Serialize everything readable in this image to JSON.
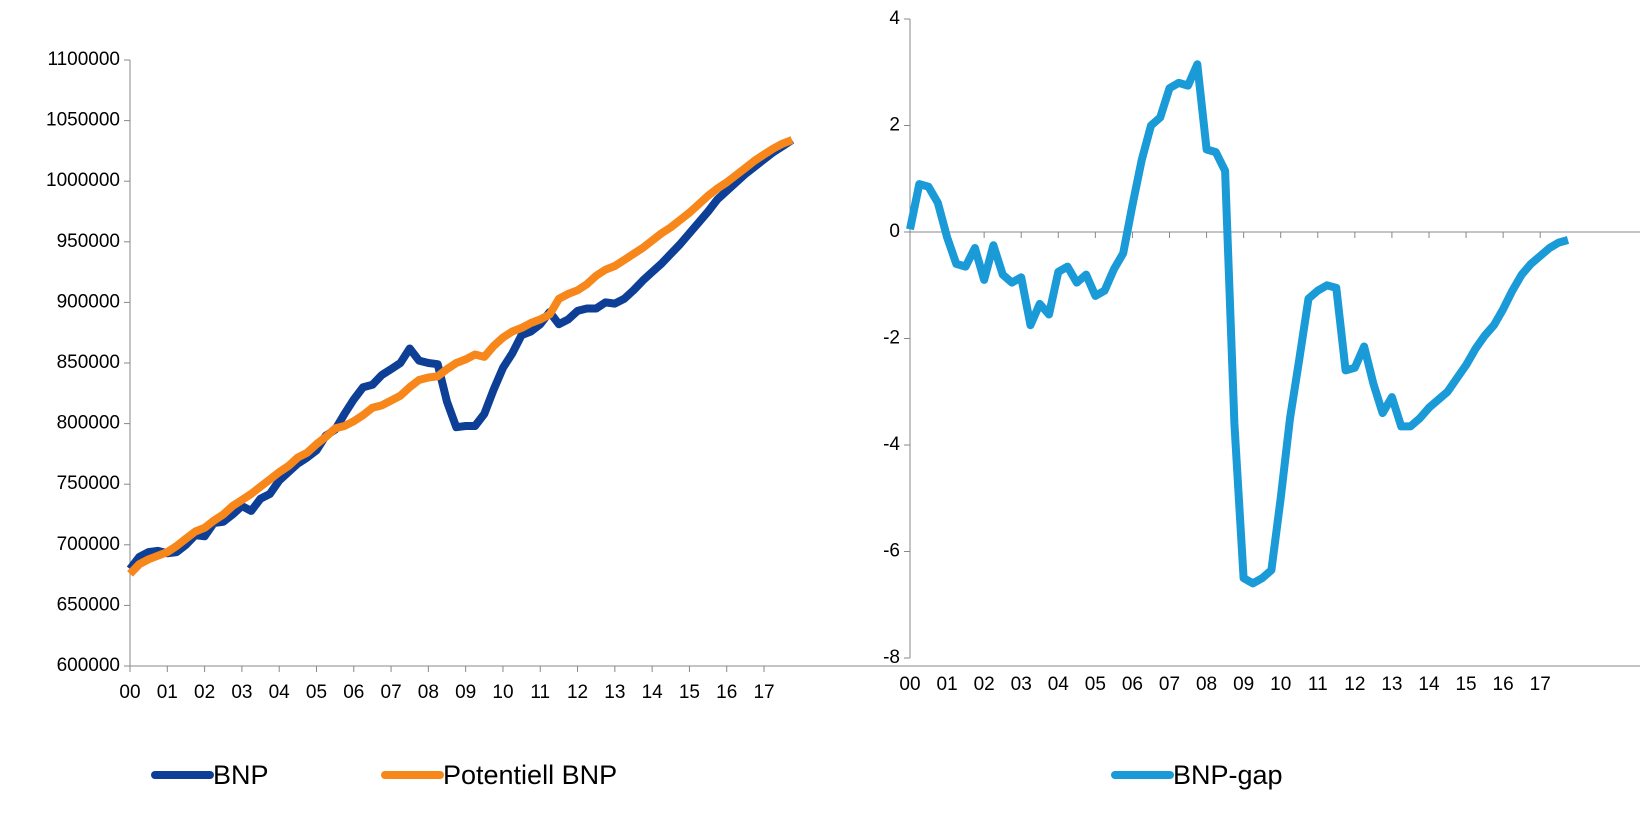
{
  "chart_data": [
    {
      "type": "line",
      "categories": [
        "00",
        null,
        null,
        null,
        "01",
        null,
        null,
        null,
        "02",
        null,
        null,
        null,
        "03",
        null,
        null,
        null,
        "04",
        null,
        null,
        null,
        "05",
        null,
        null,
        null,
        "06",
        null,
        null,
        null,
        "07",
        null,
        null,
        null,
        "08",
        null,
        null,
        null,
        "09",
        null,
        null,
        null,
        "10",
        null,
        null,
        null,
        "11",
        null,
        null,
        null,
        "12",
        null,
        null,
        null,
        "13",
        null,
        null,
        null,
        "14",
        null,
        null,
        null,
        "15",
        null,
        null,
        null,
        "16",
        null,
        null,
        null,
        "17",
        null,
        null,
        null
      ],
      "series": [
        {
          "name": "BNP",
          "color": "#0d3f96",
          "values": [
            680000,
            690000,
            694000,
            695000,
            693000,
            694000,
            700000,
            708000,
            707000,
            718000,
            719000,
            725000,
            732000,
            728000,
            738000,
            742000,
            753000,
            760000,
            767000,
            772000,
            778000,
            790000,
            795000,
            808000,
            820000,
            830000,
            832000,
            840000,
            845000,
            850000,
            862000,
            852000,
            850000,
            849000,
            818000,
            797000,
            798000,
            798000,
            808000,
            828000,
            846000,
            858000,
            873000,
            876000,
            882000,
            892000,
            882000,
            886000,
            893000,
            895000,
            895000,
            900000,
            899000,
            903000,
            910000,
            918000,
            925000,
            932000,
            940000,
            948000,
            957000,
            966000,
            975000,
            985000,
            992000,
            999000,
            1006000,
            1012000,
            1018000,
            1024000,
            1029000,
            1034000
          ]
        },
        {
          "name": "Potentiell BNP",
          "color": "#f7861b",
          "values": [
            676000,
            684000,
            688000,
            691000,
            694000,
            699000,
            705000,
            711000,
            714000,
            720000,
            725000,
            732000,
            737000,
            742000,
            748000,
            754000,
            760000,
            765000,
            772000,
            776000,
            783000,
            789000,
            796000,
            798000,
            802000,
            807000,
            813000,
            815000,
            819000,
            823000,
            830000,
            836000,
            838000,
            839000,
            845000,
            850000,
            853000,
            857000,
            855000,
            864000,
            871000,
            876000,
            879000,
            883000,
            886000,
            890000,
            903000,
            907000,
            910000,
            915000,
            922000,
            927000,
            930000,
            935000,
            940000,
            945000,
            951000,
            957000,
            962000,
            968000,
            974000,
            981000,
            988000,
            994000,
            999000,
            1005000,
            1011000,
            1017000,
            1022000,
            1027000,
            1031000,
            1034000
          ]
        }
      ],
      "ylim": [
        600000,
        1100000
      ],
      "yticks": [
        600000,
        650000,
        700000,
        750000,
        800000,
        850000,
        900000,
        950000,
        1000000,
        1050000,
        1100000
      ],
      "grid": false,
      "legend": "bottom"
    },
    {
      "type": "line",
      "categories": [
        "00",
        null,
        null,
        null,
        "01",
        null,
        null,
        null,
        "02",
        null,
        null,
        null,
        "03",
        null,
        null,
        null,
        "04",
        null,
        null,
        null,
        "05",
        null,
        null,
        null,
        "06",
        null,
        null,
        null,
        "07",
        null,
        null,
        null,
        "08",
        null,
        null,
        null,
        "09",
        null,
        null,
        null,
        "10",
        null,
        null,
        null,
        "11",
        null,
        null,
        null,
        "12",
        null,
        null,
        null,
        "13",
        null,
        null,
        null,
        "14",
        null,
        null,
        null,
        "15",
        null,
        null,
        null,
        "16",
        null,
        null,
        null,
        "17",
        null,
        null,
        null
      ],
      "series": [
        {
          "name": "BNP-gap",
          "color": "#1a9ad6",
          "values": [
            0.05,
            0.9,
            0.85,
            0.55,
            -0.1,
            -0.6,
            -0.65,
            -0.3,
            -0.9,
            -0.25,
            -0.8,
            -0.95,
            -0.85,
            -1.75,
            -1.35,
            -1.55,
            -0.75,
            -0.65,
            -0.95,
            -0.8,
            -1.2,
            -1.1,
            -0.7,
            -0.4,
            0.5,
            1.35,
            2.0,
            2.15,
            2.7,
            2.8,
            2.75,
            3.15,
            1.55,
            1.5,
            1.15,
            -3.6,
            -6.5,
            -6.6,
            -6.5,
            -6.35,
            -5.0,
            -3.5,
            -2.4,
            -1.25,
            -1.1,
            -1.0,
            -1.05,
            -2.6,
            -2.55,
            -2.15,
            -2.85,
            -3.4,
            -3.1,
            -3.65,
            -3.65,
            -3.5,
            -3.3,
            -3.15,
            -3.0,
            -2.75,
            -2.5,
            -2.2,
            -1.95,
            -1.75,
            -1.45,
            -1.1,
            -0.8,
            -0.6,
            -0.45,
            -0.3,
            -0.2,
            -0.15
          ]
        }
      ],
      "ylim": [
        -8,
        4
      ],
      "yticks": [
        -8,
        -6,
        -4,
        -2,
        0,
        2,
        4
      ],
      "grid": false,
      "legend": "bottom"
    }
  ]
}
